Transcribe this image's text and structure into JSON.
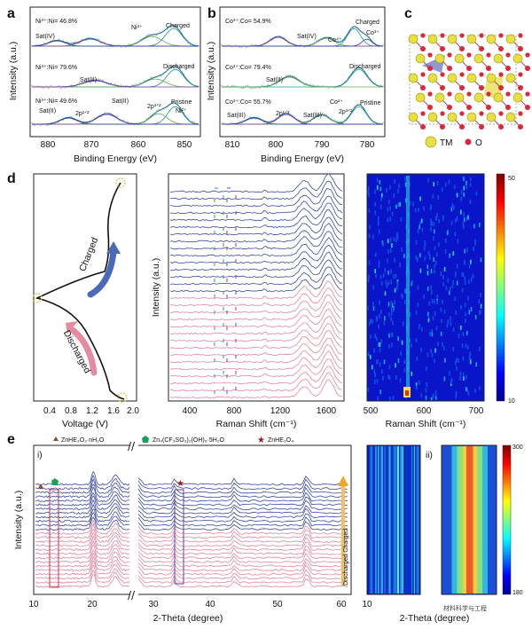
{
  "panels": {
    "a": {
      "letter": "a",
      "ylabel": "Intensity (a.u.)",
      "xlabel": "Binding Energy (eV)",
      "xticks": [
        "880",
        "870",
        "860",
        "850"
      ],
      "rows": [
        {
          "ratio": "Ni³⁺:Ni= 46.8%",
          "state": "Charged",
          "labels": [
            "Sat(IV)",
            "Ni³⁺"
          ]
        },
        {
          "ratio": "Ni³⁺:Ni= 79.6%",
          "state": "Discharged",
          "labels": [
            "Sat(II)"
          ]
        },
        {
          "ratio": "Ni³⁺:Ni= 49.6%",
          "state": "Pristine",
          "labels": [
            "Sat(II)",
            "Sat(II)",
            "2p¹ᐟ²",
            "2p³ᐟ²",
            "Ni²⁺"
          ]
        }
      ]
    },
    "b": {
      "letter": "b",
      "ylabel": "Intensity (a.u.)",
      "xlabel": "Binding Energy (eV)",
      "xticks": [
        "810",
        "800",
        "790",
        "780"
      ],
      "rows": [
        {
          "ratio": "Co³⁺:Co= 54.9%",
          "state": "Charged",
          "labels": [
            "Sat(IV)",
            "Co⁴⁺",
            "Co³⁺"
          ]
        },
        {
          "ratio": "Co³⁺:Co= 79.4%",
          "state": "Discharged",
          "labels": [
            "Sat(II)"
          ]
        },
        {
          "ratio": "Co³⁺:Co= 55.7%",
          "state": "Pristine",
          "labels": [
            "Sat(III)",
            "2p¹ᐟ²",
            "Sat(III)",
            "Co²⁺",
            "2p³ᐟ²"
          ]
        }
      ]
    },
    "c": {
      "letter": "c",
      "legend": [
        {
          "label": "TM",
          "color": "#e8e040"
        },
        {
          "label": "O",
          "color": "#d8283a"
        }
      ]
    },
    "d": {
      "letter": "d",
      "voltage": {
        "xlabel": "Voltage (V)",
        "xticks": [
          "0.4",
          "0.8",
          "1.2",
          "1.6",
          "2.0"
        ],
        "charged_label": "Charged",
        "discharged_label": "Discharged"
      },
      "raman": {
        "ylabel": "Intensity (a.u.)",
        "xlabel": "Raman Shift (cm⁻¹)",
        "xticks": [
          "400",
          "800",
          "1200",
          "1600"
        ]
      },
      "raman_map": {
        "xlabel": "Raman Shift (cm⁻¹)",
        "xticks": [
          "500",
          "600",
          "700"
        ],
        "cbar_max": "50",
        "cbar_min": "10"
      }
    },
    "e": {
      "letter": "e",
      "roman_i": "i)",
      "roman_ii": "ii)",
      "ylabel": "Intensity (a.u.)",
      "xlabel": "2-Theta (degree)",
      "xticks": [
        "10",
        "20",
        "30",
        "40",
        "50",
        "60"
      ],
      "legend": [
        {
          "symbol": "triangle",
          "color": "#8b4a2a",
          "label": "ZnHE₃O₂·nH₂O"
        },
        {
          "symbol": "pentagon",
          "color": "#1aa05a",
          "label": "Zn₄(CF₃SO₃)₂(OH)₆·5H₂O"
        },
        {
          "symbol": "star",
          "color": "#a01818",
          "label": "ZnHE₃O₄"
        }
      ],
      "side_label": "Discharged Charged",
      "map_xlabel": "2-Theta (degree)",
      "map_xtick": "10",
      "cbar_max": "300",
      "cbar_min": "180",
      "watermark": "材料科学与工程"
    }
  },
  "colors": {
    "blue": "#2a3f9a",
    "pink": "#e06a85",
    "teal": "#1f9a90",
    "green": "#5ab04a",
    "purple": "#8a3aa8"
  }
}
